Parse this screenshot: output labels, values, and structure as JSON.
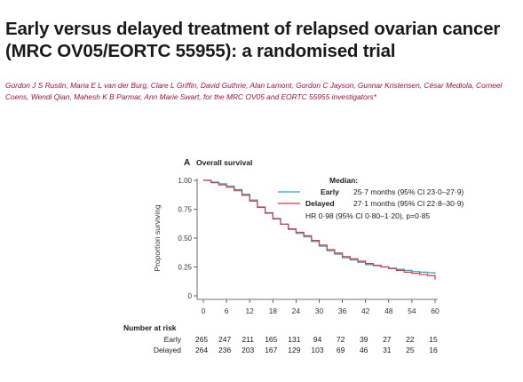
{
  "title": "Early versus delayed treatment of relapsed ovarian cancer (MRC OV05/EORTC 55955): a randomised trial",
  "authors": "Gordon J S Rustin, Maria E L van der Burg, Clare L Griffin, David Guthrie, Alan Lamont, Gordon C Jayson, Gunnar Kristensen, César Mediola, Corneel Coens, Wendi Qian, Mahesh K B Parmar, Ann Marie Swart, for the MRC OV05 and EORTC 55955 investigators*",
  "colors": {
    "title": "#1a1a1a",
    "authors": "#a3123a",
    "early": "#2aa7c9",
    "delayed": "#d8393f"
  },
  "chart_data": {
    "type": "line",
    "panel_label": "A",
    "title": "Overall survival",
    "xlabel": "",
    "ylabel": "Proportion surviving",
    "xlim": [
      0,
      60
    ],
    "ylim": [
      0,
      1
    ],
    "x_ticks": [
      "0",
      "6",
      "12",
      "18",
      "24",
      "30",
      "36",
      "42",
      "48",
      "54",
      "60"
    ],
    "y_ticks": [
      "0",
      "0.25",
      "0.50",
      "0.75",
      "1.00"
    ],
    "grid": false,
    "legend_title": "Median:",
    "legend_position": "top-right",
    "series": [
      {
        "name": "Early",
        "median_text": "25·7 months (95% CI 23·0–27·9)",
        "x": [
          0,
          2,
          4,
          6,
          8,
          10,
          12,
          14,
          16,
          18,
          20,
          22,
          24,
          26,
          28,
          30,
          32,
          34,
          36,
          38,
          40,
          42,
          44,
          46,
          48,
          50,
          52,
          54,
          56,
          58,
          60
        ],
        "y": [
          1.0,
          0.985,
          0.97,
          0.95,
          0.92,
          0.88,
          0.83,
          0.77,
          0.72,
          0.67,
          0.62,
          0.575,
          0.54,
          0.51,
          0.47,
          0.43,
          0.39,
          0.36,
          0.33,
          0.31,
          0.29,
          0.27,
          0.26,
          0.25,
          0.24,
          0.23,
          0.22,
          0.21,
          0.205,
          0.2,
          0.19
        ]
      },
      {
        "name": "Delayed",
        "median_text": "27·1 months (95% CI 22·8–30·9)",
        "x": [
          0,
          2,
          4,
          6,
          8,
          10,
          12,
          14,
          16,
          18,
          20,
          22,
          24,
          26,
          28,
          30,
          32,
          34,
          36,
          38,
          40,
          42,
          44,
          46,
          48,
          50,
          52,
          54,
          56,
          58,
          60
        ],
        "y": [
          1.0,
          0.98,
          0.96,
          0.94,
          0.91,
          0.87,
          0.82,
          0.765,
          0.715,
          0.665,
          0.62,
          0.58,
          0.55,
          0.52,
          0.48,
          0.44,
          0.4,
          0.37,
          0.34,
          0.32,
          0.3,
          0.28,
          0.265,
          0.25,
          0.235,
          0.22,
          0.205,
          0.195,
          0.185,
          0.175,
          0.14
        ]
      }
    ],
    "hr_text": "HR 0·98 (95% CI 0·80–1·20), p=0·85",
    "risk_table": {
      "title": "Number at risk",
      "rows": [
        {
          "label": "Early",
          "values": [
            "265",
            "247",
            "211",
            "165",
            "131",
            "94",
            "72",
            "39",
            "27",
            "22",
            "15"
          ]
        },
        {
          "label": "Delayed",
          "values": [
            "264",
            "236",
            "203",
            "167",
            "129",
            "103",
            "69",
            "46",
            "31",
            "25",
            "16"
          ]
        }
      ]
    }
  }
}
